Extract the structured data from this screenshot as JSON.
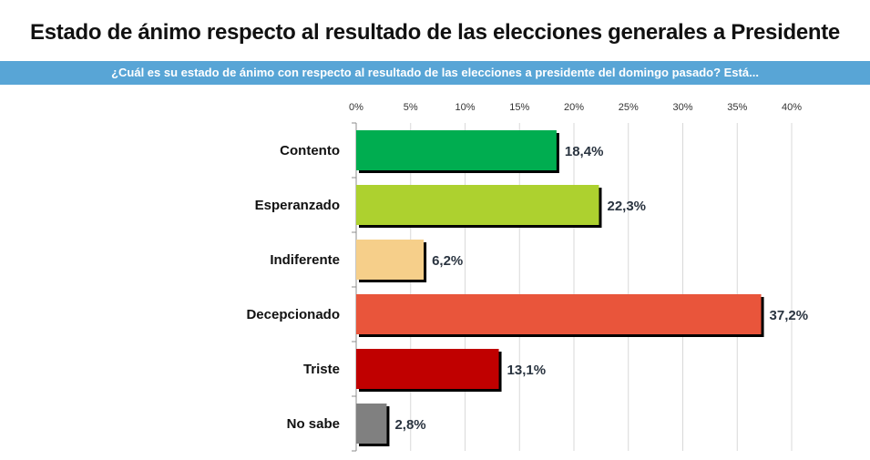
{
  "chart_data": {
    "type": "bar",
    "orientation": "horizontal",
    "title": "Estado de ánimo respecto al resultado de las elecciones generales a Presidente",
    "subtitle": "¿Cuál es su estado de ánimo con respecto al resultado de las elecciones a presidente del domingo pasado? Está...",
    "xlabel": "",
    "ylabel": "",
    "xlim": [
      0,
      40
    ],
    "x_ticks": [
      0,
      5,
      10,
      15,
      20,
      25,
      30,
      35,
      40
    ],
    "x_tick_labels": [
      "0%",
      "5%",
      "10%",
      "15%",
      "20%",
      "25%",
      "30%",
      "35%",
      "40%"
    ],
    "grid": true,
    "legend": "none",
    "categories": [
      "Contento",
      "Esperanzado",
      "Indiferente",
      "Decepcionado",
      "Triste",
      "No sabe"
    ],
    "values": [
      18.4,
      22.3,
      6.2,
      37.2,
      13.1,
      2.8
    ],
    "value_labels": [
      "18,4%",
      "22,3%",
      "6,2%",
      "37,2%",
      "13,1%",
      "2,8%"
    ],
    "colors": [
      "#00ad50",
      "#add12f",
      "#f6cf8a",
      "#e9553b",
      "#c00000",
      "#808080"
    ]
  }
}
